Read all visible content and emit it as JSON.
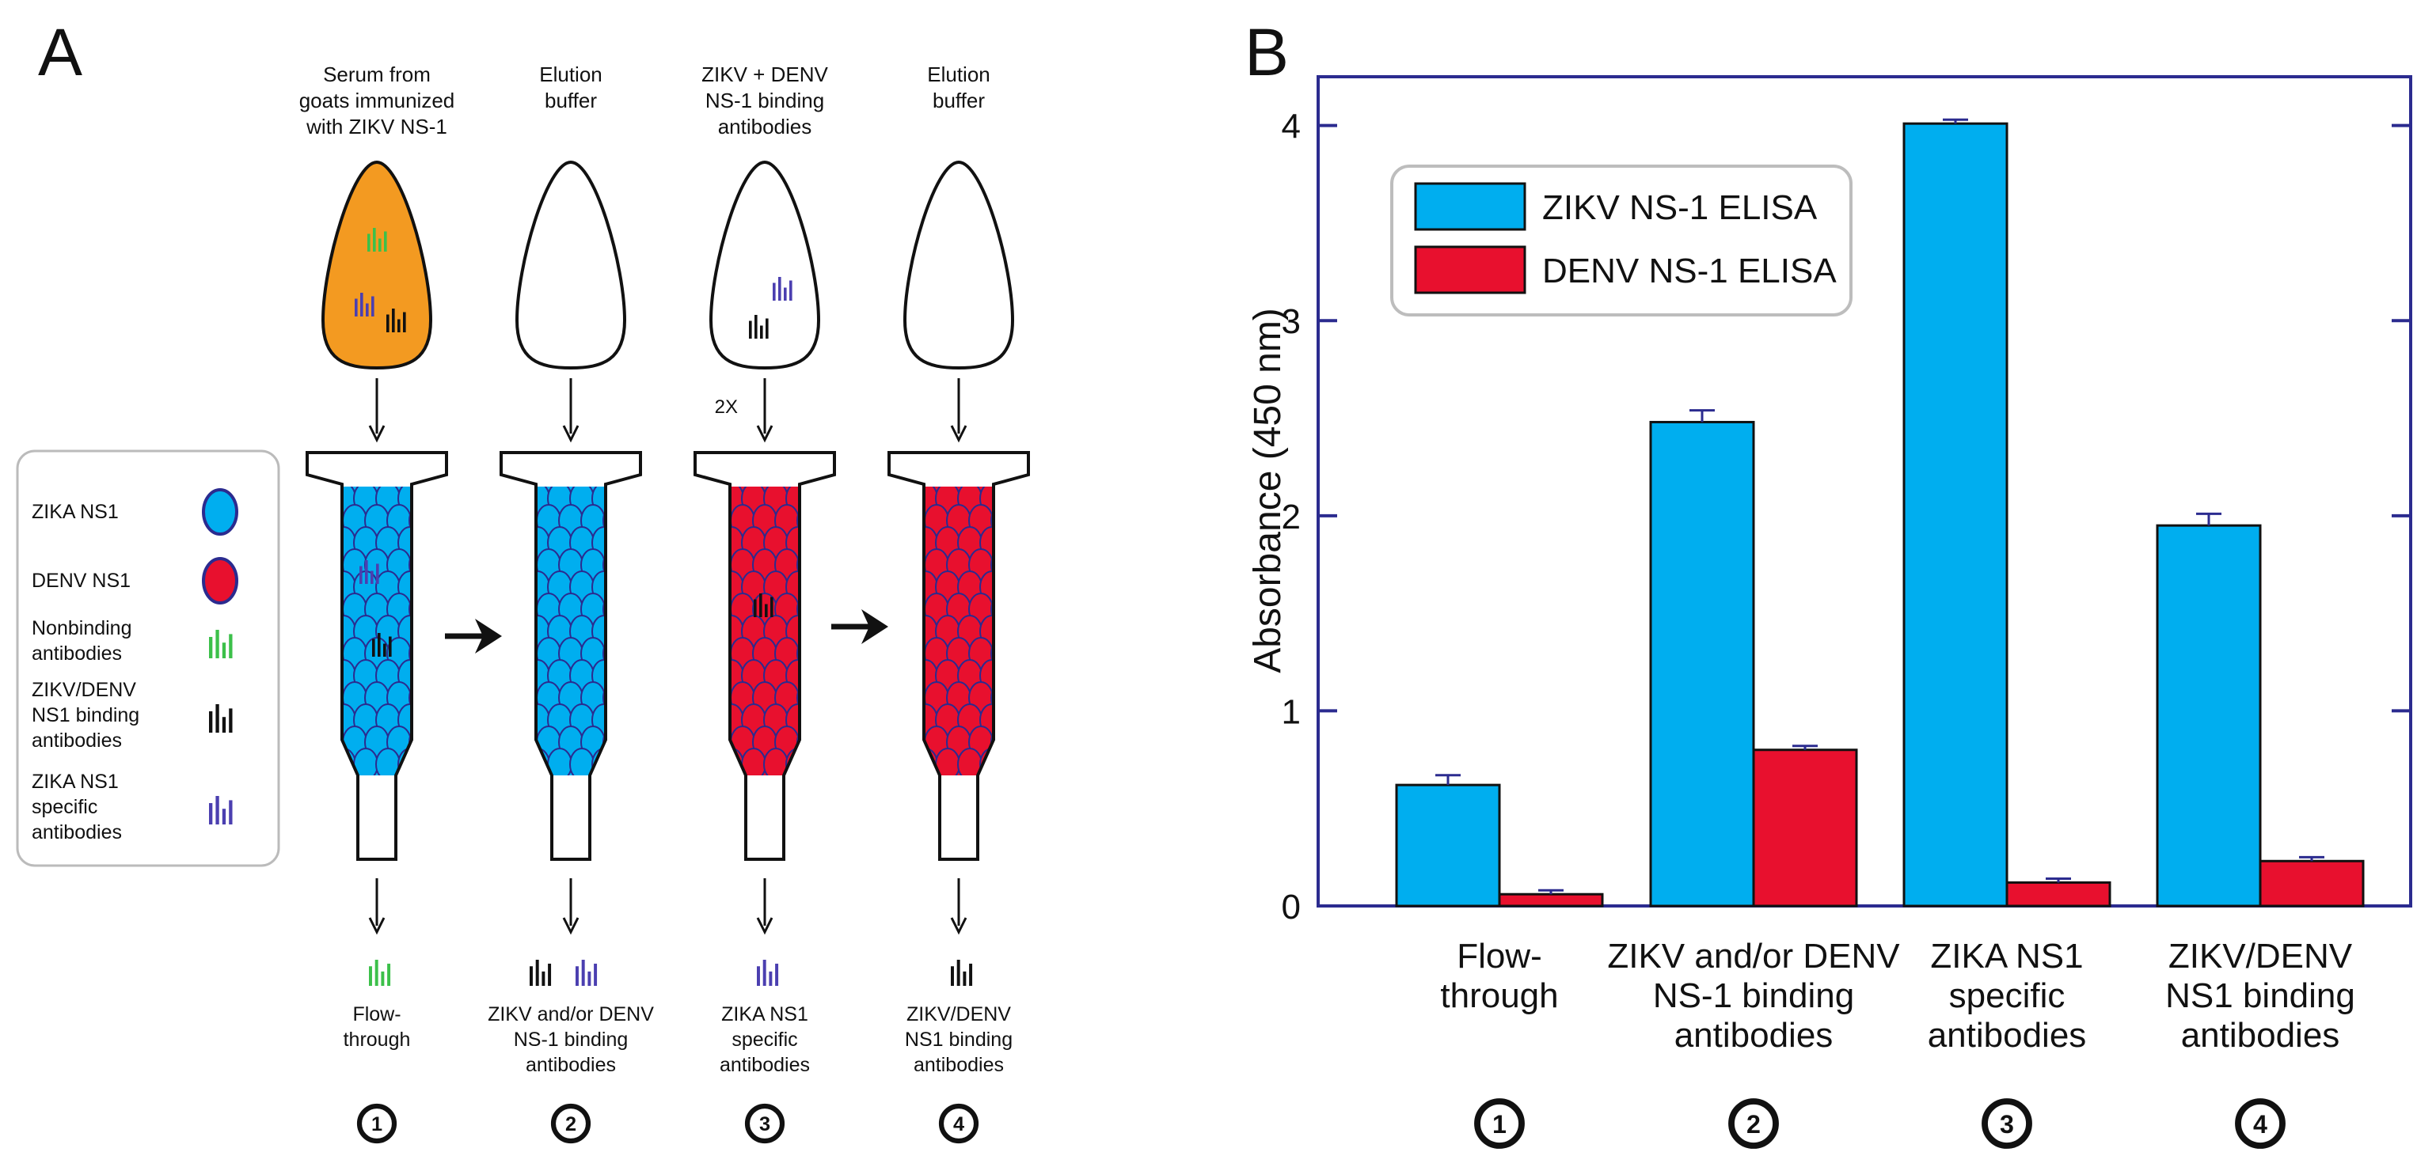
{
  "panel_a": {
    "letter": "A",
    "legend": {
      "items": [
        {
          "label_lines": [
            "ZIKA NS1"
          ],
          "icon": "blue-bead-icon"
        },
        {
          "label_lines": [
            "DENV NS1"
          ],
          "icon": "red-bead-icon"
        },
        {
          "label_lines": [
            "Nonbinding",
            "antibodies"
          ],
          "icon": "green-antibody-icon"
        },
        {
          "label_lines": [
            "ZIKV/DENV",
            "NS1 binding",
            "antibodies"
          ],
          "icon": "black-antibody-icon"
        },
        {
          "label_lines": [
            "ZIKA NS1",
            "specific",
            "antibodies"
          ],
          "icon": "purple-antibody-icon"
        }
      ]
    },
    "steps": [
      {
        "top_lines": [
          "Serum from",
          "goats immunized",
          "with ZIKV NS-1"
        ],
        "bulb": "orange",
        "column": "blue",
        "bottom_lines": [
          "Flow-",
          "through"
        ],
        "number": "1",
        "input_label": ""
      },
      {
        "top_lines": [
          "Elution",
          "buffer"
        ],
        "bulb": "white",
        "column": "blue",
        "bottom_lines": [
          "ZIKV and/or DENV",
          "NS-1 binding",
          "antibodies"
        ],
        "number": "2",
        "input_label": ""
      },
      {
        "top_lines": [
          "ZIKV + DENV",
          "NS-1 binding",
          "antibodies"
        ],
        "bulb": "white",
        "column": "red",
        "bottom_lines": [
          "ZIKA NS1",
          "specific",
          "antibodies"
        ],
        "number": "3",
        "input_label": "2X"
      },
      {
        "top_lines": [
          "Elution",
          "buffer"
        ],
        "bulb": "white",
        "column": "red",
        "bottom_lines": [
          "ZIKV/DENV",
          "NS1 binding",
          "antibodies"
        ],
        "number": "4",
        "input_label": ""
      }
    ]
  },
  "panel_b": {
    "letter": "B",
    "numbers": [
      "1",
      "2",
      "3",
      "4"
    ]
  },
  "colors": {
    "zikv": "#00aeef",
    "denv": "#e8102e",
    "orange": "#f39a21",
    "green": "#3cc04a",
    "purple": "#4b3fb0",
    "axis": "#2b2b8f",
    "bead_outline": "#2b2b8f"
  },
  "chart_data": {
    "type": "bar",
    "title": "",
    "xlabel": "",
    "ylabel": "Absorbance (450 nm)",
    "ylim": [
      0,
      4.25
    ],
    "yticks": [
      0,
      1,
      2,
      3,
      4
    ],
    "categories": [
      [
        "Flow-",
        "through"
      ],
      [
        "ZIKV and/or DENV",
        "NS-1 binding",
        "antibodies"
      ],
      [
        "ZIKA NS1",
        "specific",
        "antibodies"
      ],
      [
        "ZIKV/DENV",
        "NS1 binding",
        "antibodies"
      ]
    ],
    "series": [
      {
        "name": "ZIKV NS-1 ELISA",
        "color": "#00aeef",
        "values": [
          0.62,
          2.48,
          4.01,
          1.95
        ],
        "errors": [
          0.05,
          0.06,
          0.02,
          0.06
        ]
      },
      {
        "name": "DENV NS-1 ELISA",
        "color": "#e8102e",
        "values": [
          0.06,
          0.8,
          0.12,
          0.23
        ],
        "errors": [
          0.02,
          0.02,
          0.02,
          0.02
        ]
      }
    ],
    "legend_position": "top-left"
  }
}
